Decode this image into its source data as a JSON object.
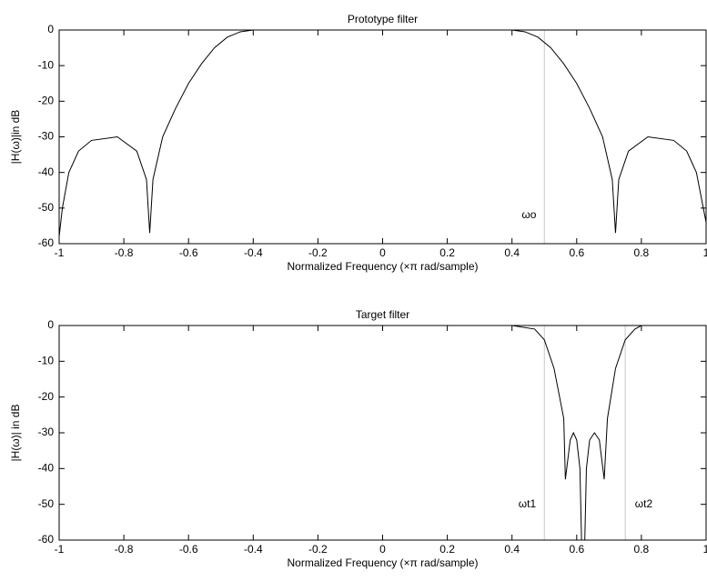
{
  "chart_data": [
    {
      "type": "line",
      "title": "Prototype filter",
      "x_label": "Normalized Frequency  (×π rad/sample)",
      "y_label": "|H(ω)|in dB",
      "x": [
        -1.0,
        -0.99,
        -0.97,
        -0.94,
        -0.9,
        -0.82,
        -0.76,
        -0.73,
        -0.72,
        -0.71,
        -0.68,
        -0.64,
        -0.6,
        -0.56,
        -0.52,
        -0.48,
        -0.44,
        -0.4,
        0.4,
        0.44,
        0.48,
        0.52,
        0.56,
        0.6,
        0.64,
        0.68,
        0.71,
        0.72,
        0.73,
        0.76,
        0.82,
        0.9,
        0.94,
        0.97,
        1.0
      ],
      "values": [
        -58,
        -50,
        -40,
        -34,
        -31,
        -30,
        -34,
        -42,
        -57,
        -42,
        -30,
        -22,
        -15,
        -9.5,
        -5,
        -2,
        -0.5,
        0,
        0,
        -0.5,
        -2,
        -5,
        -9.5,
        -15,
        -22,
        -30,
        -42,
        -57,
        -42,
        -34,
        -30,
        -31,
        -34,
        -40,
        -54
      ],
      "color": "#000000",
      "vlines": [
        0.5
      ],
      "annotations": [
        {
          "text": "ωo",
          "x": 0.43,
          "y": -52
        }
      ],
      "xlim": [
        -1,
        1
      ],
      "xticks": [
        -1,
        -0.8,
        -0.6,
        -0.4,
        -0.2,
        0,
        0.2,
        0.4,
        0.6,
        0.8,
        1
      ],
      "ylim": [
        -60,
        0
      ],
      "yticks": [
        -60,
        -50,
        -40,
        -30,
        -20,
        -10,
        0
      ]
    },
    {
      "type": "line",
      "title": "Target filter",
      "x_label": "Normalized Frequency  (×π rad/sample)",
      "y_label": "|H(ω)| in dB",
      "x": [
        -1.0,
        0.4,
        0.47,
        0.5,
        0.53,
        0.56,
        0.565,
        0.58,
        0.59,
        0.6,
        0.61,
        0.615,
        0.625,
        0.63,
        0.64,
        0.655,
        0.67,
        0.685,
        0.695,
        0.72,
        0.75,
        0.78,
        0.8,
        1.0
      ],
      "values": [
        0,
        0,
        -1,
        -4,
        -12,
        -26,
        -43,
        -32,
        -30,
        -32,
        -40,
        -60,
        -60,
        -40,
        -32,
        -30,
        -32,
        -43,
        -26,
        -12,
        -4,
        -1,
        0,
        0
      ],
      "color": "#000000",
      "vlines": [
        0.5,
        0.75
      ],
      "annotations": [
        {
          "text": "ωt1",
          "x": 0.42,
          "y": -50
        },
        {
          "text": "ωt2",
          "x": 0.78,
          "y": -50
        }
      ],
      "xlim": [
        -1,
        1
      ],
      "xticks": [
        -1,
        -0.8,
        -0.6,
        -0.4,
        -0.2,
        0,
        0.2,
        0.4,
        0.6,
        0.8,
        1
      ],
      "ylim": [
        -60,
        0
      ],
      "yticks": [
        -60,
        -50,
        -40,
        -30,
        -20,
        -10,
        0
      ]
    }
  ]
}
